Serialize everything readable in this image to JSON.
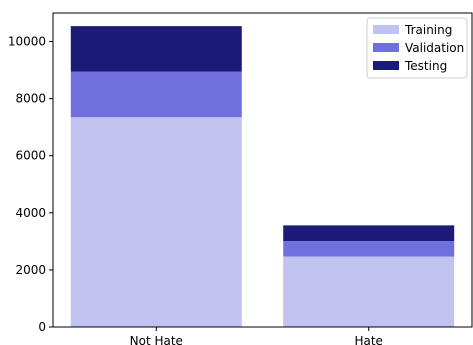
{
  "chart_data": {
    "type": "bar",
    "stacked": true,
    "title": "",
    "xlabel": "",
    "ylabel": "",
    "categories": [
      "Not Hate",
      "Hate"
    ],
    "ylim": [
      0,
      11000
    ],
    "yticks": [
      0,
      2000,
      4000,
      6000,
      8000,
      10000
    ],
    "grid": false,
    "legend_position": "top-right",
    "series": [
      {
        "name": "Training",
        "color": "#c0c2f0",
        "values": [
          7350,
          2470
        ]
      },
      {
        "name": "Validation",
        "color": "#6f6fde",
        "values": [
          1600,
          540
        ]
      },
      {
        "name": "Testing",
        "color": "#1c1c78",
        "values": [
          1590,
          550
        ]
      }
    ]
  }
}
